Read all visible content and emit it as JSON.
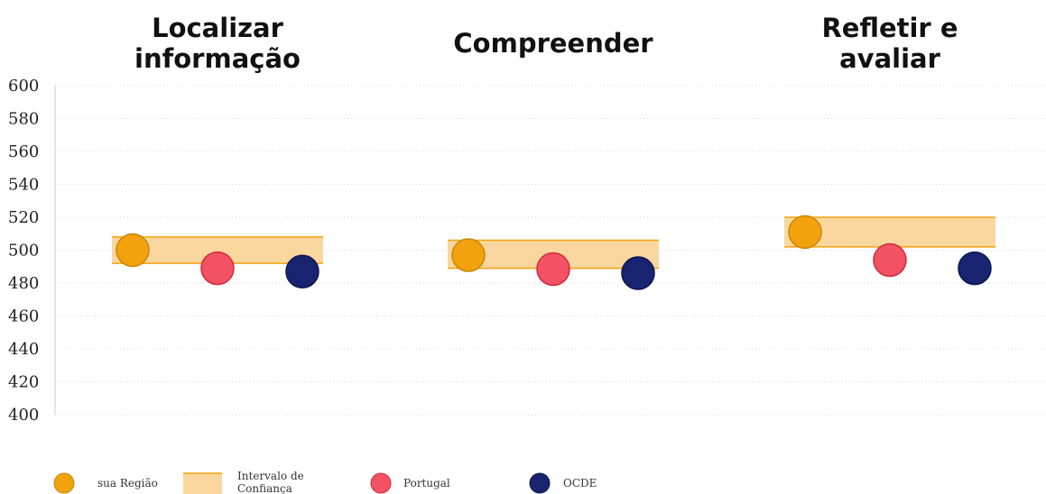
{
  "chart_data": {
    "type": "scatter",
    "panels": [
      "Localizar\ninformação",
      "Compreender",
      "Refletir e\navaliar"
    ],
    "ylim": [
      400,
      600
    ],
    "yticks": [
      400,
      420,
      440,
      460,
      480,
      500,
      520,
      540,
      560,
      580,
      600
    ],
    "grid": true,
    "series": [
      {
        "name": "sua Região",
        "values": [
          500,
          497,
          511
        ]
      },
      {
        "name": "Portugal",
        "values": [
          489,
          488.5,
          494
        ]
      },
      {
        "name": "OCDE",
        "values": [
          487,
          486,
          489
        ]
      }
    ],
    "confidence_interval": {
      "name": "Intervalo de Confiança",
      "low": [
        492,
        489,
        502
      ],
      "high": [
        508,
        506,
        520
      ]
    },
    "legend_position": "bottom",
    "colors": {
      "sua Região": "#f2a20c",
      "sua Região border": "#c9860a",
      "Intervalo de Confiança": "#f9d79e",
      "Intervalo de Confiança border": "#f2a20c",
      "Portugal": "#f25263",
      "Portugal border": "#cf2a3d",
      "OCDE": "#182470",
      "OCDE border": "#0e1650"
    }
  }
}
